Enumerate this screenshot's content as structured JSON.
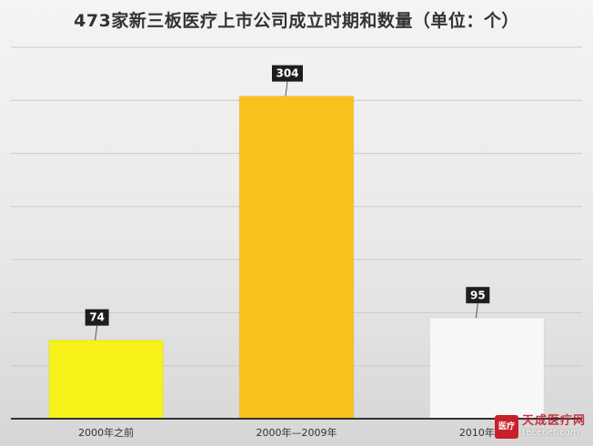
{
  "chart_data": {
    "type": "bar",
    "title": "473家新三板医疗上市公司成立时期和数量（单位：个）",
    "categories": [
      "2000年之前",
      "2000年—2009年",
      "2010年至今"
    ],
    "values": [
      74,
      304,
      95
    ],
    "colors": [
      "#f7f21a",
      "#f8c21c",
      "#f7f7f7"
    ],
    "ylim": [
      0,
      350
    ],
    "grid": true,
    "legend": "none"
  },
  "watermark": {
    "name": "天成医疗网",
    "site": "tecenet.com",
    "logo_text": "医疗"
  }
}
